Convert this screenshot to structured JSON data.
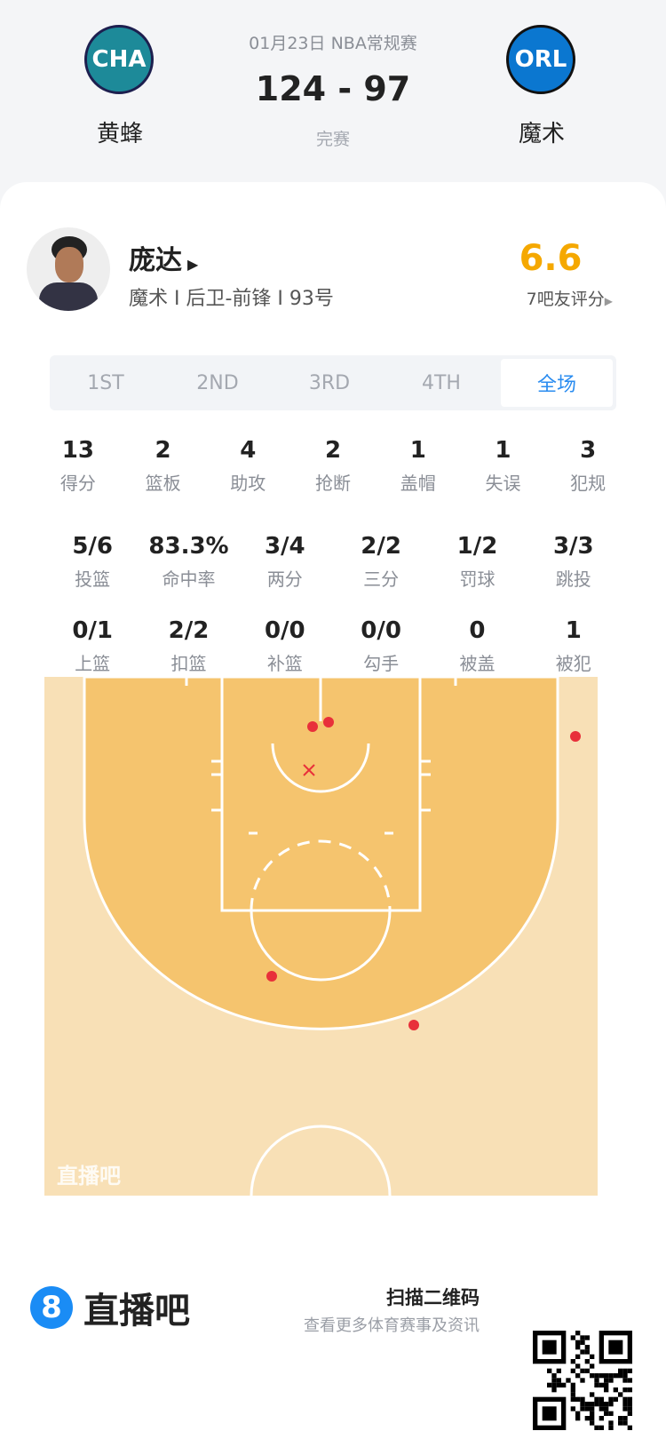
{
  "header": {
    "date_league": "01月23日 NBA常规赛",
    "score": "124 - 97",
    "status": "完赛",
    "home": {
      "abbr": "CHA",
      "name": "黄蜂",
      "color": "#1d8a99"
    },
    "away": {
      "abbr": "ORL",
      "name": "魔术",
      "color": "#0b77d0"
    }
  },
  "player": {
    "name": "庞达",
    "info": "魔术 I 后卫-前锋 I 93号",
    "rating": "6.6",
    "rating_label": "7吧友评分",
    "rating_color": "#f5a800"
  },
  "tabs": [
    {
      "label": "1ST"
    },
    {
      "label": "2ND"
    },
    {
      "label": "3RD"
    },
    {
      "label": "4TH"
    },
    {
      "label": "全场",
      "active": true
    }
  ],
  "stats_rows": [
    [
      {
        "v": "13",
        "l": "得分"
      },
      {
        "v": "2",
        "l": "篮板"
      },
      {
        "v": "4",
        "l": "助攻"
      },
      {
        "v": "2",
        "l": "抢断"
      },
      {
        "v": "1",
        "l": "盖帽"
      },
      {
        "v": "1",
        "l": "失误"
      },
      {
        "v": "3",
        "l": "犯规"
      }
    ],
    [
      {
        "v": "5/6",
        "l": "投篮"
      },
      {
        "v": "83.3%",
        "l": "命中率"
      },
      {
        "v": "3/4",
        "l": "两分"
      },
      {
        "v": "2/2",
        "l": "三分"
      },
      {
        "v": "1/2",
        "l": "罚球"
      },
      {
        "v": "3/3",
        "l": "跳投"
      }
    ],
    [
      {
        "v": "0/1",
        "l": "上篮"
      },
      {
        "v": "2/2",
        "l": "扣篮"
      },
      {
        "v": "0/0",
        "l": "补篮"
      },
      {
        "v": "0/0",
        "l": "勾手"
      },
      {
        "v": "0",
        "l": "被盖"
      },
      {
        "v": "1",
        "l": "被犯"
      }
    ]
  ],
  "court": {
    "watermark": "直播吧",
    "made_color": "#e8303a",
    "shots": [
      {
        "made": true
      },
      {
        "made": true
      },
      {
        "made": true
      },
      {
        "made": true
      },
      {
        "made": true
      },
      {
        "made": false
      }
    ]
  },
  "footer": {
    "brand": "直播吧",
    "brand_color": "#1a8cf5",
    "scan": "扫描二维码",
    "sub": "查看更多体育赛事及资讯"
  }
}
